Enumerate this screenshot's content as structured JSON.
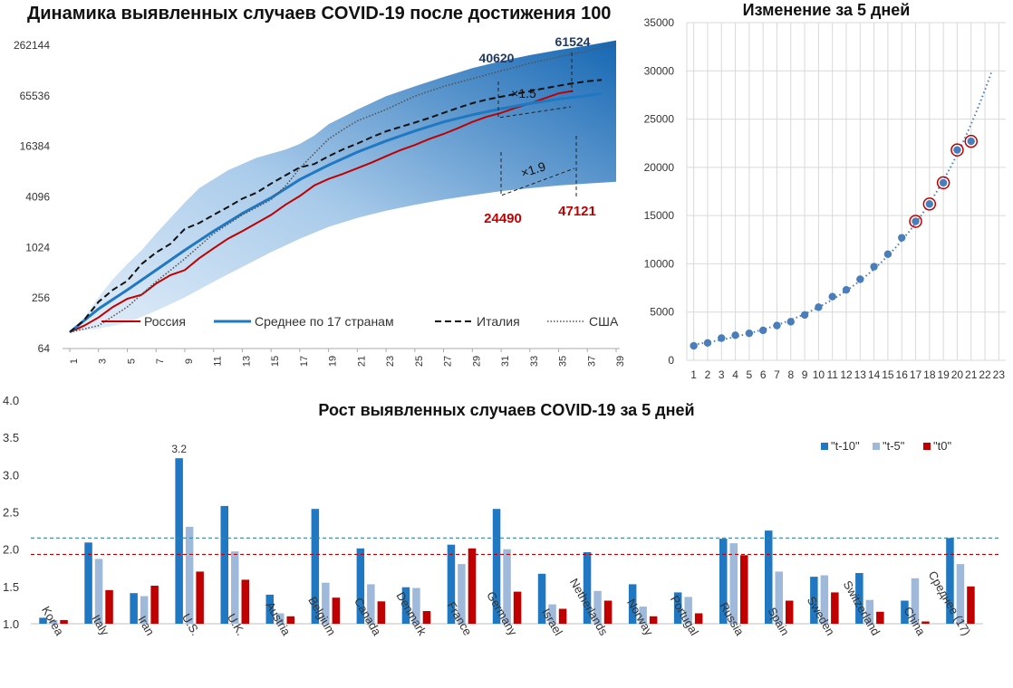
{
  "chart_data": [
    {
      "type": "line",
      "title": "Динамика выявленных случаев COVID-19 после достижения 100",
      "y_scale": "log2",
      "ylim": [
        64,
        400000
      ],
      "y_ticks": [
        "64",
        "256",
        "1024",
        "4096",
        "16384",
        "65536",
        "262144"
      ],
      "x_ticks": [
        "1",
        "3",
        "5",
        "7",
        "9",
        "11",
        "13",
        "15",
        "17",
        "19",
        "21",
        "23",
        "25",
        "27",
        "29",
        "31",
        "33",
        "35",
        "37",
        "39"
      ],
      "xlim": [
        1,
        39
      ],
      "band": {
        "upper": [
          [
            1,
            100
          ],
          [
            2,
            150
          ],
          [
            3,
            260
          ],
          [
            4,
            430
          ],
          [
            5,
            650
          ],
          [
            6,
            950
          ],
          [
            7,
            1500
          ],
          [
            8,
            2300
          ],
          [
            9,
            3500
          ],
          [
            10,
            5200
          ],
          [
            12,
            8500
          ],
          [
            14,
            12000
          ],
          [
            16,
            15000
          ],
          [
            17,
            17500
          ],
          [
            18,
            22000
          ],
          [
            19,
            30000
          ],
          [
            21,
            45000
          ],
          [
            23,
            65000
          ],
          [
            25,
            85000
          ],
          [
            27,
            110000
          ],
          [
            29,
            140000
          ],
          [
            31,
            170000
          ],
          [
            33,
            200000
          ],
          [
            35,
            230000
          ],
          [
            37,
            260000
          ],
          [
            39,
            300000
          ]
        ],
        "lower": [
          [
            1,
            100
          ],
          [
            3,
            110
          ],
          [
            5,
            130
          ],
          [
            7,
            180
          ],
          [
            9,
            260
          ],
          [
            11,
            400
          ],
          [
            13,
            600
          ],
          [
            15,
            900
          ],
          [
            17,
            1300
          ],
          [
            19,
            1800
          ],
          [
            21,
            2300
          ],
          [
            23,
            2800
          ],
          [
            25,
            3300
          ],
          [
            27,
            3800
          ],
          [
            29,
            4300
          ],
          [
            31,
            4800
          ],
          [
            33,
            5200
          ],
          [
            35,
            5600
          ],
          [
            37,
            5900
          ],
          [
            39,
            6200
          ]
        ]
      },
      "series": [
        {
          "name": "Россия",
          "color": "#c00000",
          "style": "solid",
          "points": [
            [
              1,
              100
            ],
            [
              2,
              120
            ],
            [
              3,
              150
            ],
            [
              4,
              200
            ],
            [
              5,
              250
            ],
            [
              6,
              280
            ],
            [
              7,
              380
            ],
            [
              8,
              480
            ],
            [
              9,
              550
            ],
            [
              10,
              760
            ],
            [
              11,
              1000
            ],
            [
              12,
              1300
            ],
            [
              13,
              1600
            ],
            [
              14,
              2000
            ],
            [
              15,
              2500
            ],
            [
              16,
              3300
            ],
            [
              17,
              4200
            ],
            [
              18,
              5600
            ],
            [
              19,
              6700
            ],
            [
              20,
              7700
            ],
            [
              21,
              9000
            ],
            [
              22,
              10500
            ],
            [
              23,
              12500
            ],
            [
              24,
              14800
            ],
            [
              25,
              17000
            ],
            [
              26,
              20000
            ],
            [
              27,
              23000
            ],
            [
              28,
              27000
            ],
            [
              29,
              32000
            ],
            [
              30,
              37000
            ],
            [
              31,
              41000
            ],
            [
              32,
              47000
            ],
            [
              33,
              53000
            ],
            [
              34,
              61000
            ],
            [
              35,
              70000
            ],
            [
              36,
              75000
            ]
          ]
        },
        {
          "name": "Среднее по 17 странам",
          "color": "#1f78c1",
          "style": "solid",
          "points": [
            [
              1,
              100
            ],
            [
              3,
              190
            ],
            [
              5,
              320
            ],
            [
              7,
              550
            ],
            [
              9,
              950
            ],
            [
              11,
              1600
            ],
            [
              13,
              2600
            ],
            [
              15,
              4000
            ],
            [
              17,
              6600
            ],
            [
              19,
              9800
            ],
            [
              21,
              14000
            ],
            [
              23,
              19000
            ],
            [
              25,
              25000
            ],
            [
              27,
              32000
            ],
            [
              29,
              39000
            ],
            [
              31,
              46000
            ],
            [
              33,
              53000
            ],
            [
              35,
              60000
            ],
            [
              37,
              66000
            ],
            [
              38,
              70000
            ]
          ]
        },
        {
          "name": "Италия",
          "color": "#111111",
          "style": "dashed",
          "points": [
            [
              1,
              100
            ],
            [
              2,
              140
            ],
            [
              3,
              230
            ],
            [
              4,
              320
            ],
            [
              5,
              410
            ],
            [
              6,
              650
            ],
            [
              7,
              890
            ],
            [
              8,
              1130
            ],
            [
              9,
              1700
            ],
            [
              10,
              2000
            ],
            [
              11,
              2500
            ],
            [
              12,
              3100
            ],
            [
              13,
              3900
            ],
            [
              14,
              4600
            ],
            [
              15,
              5900
            ],
            [
              16,
              7400
            ],
            [
              17,
              9200
            ],
            [
              18,
              10100
            ],
            [
              19,
              12500
            ],
            [
              20,
              15100
            ],
            [
              21,
              17700
            ],
            [
              22,
              21100
            ],
            [
              23,
              24700
            ],
            [
              24,
              27900
            ],
            [
              25,
              31500
            ],
            [
              26,
              35700
            ],
            [
              27,
              41000
            ],
            [
              28,
              47000
            ],
            [
              29,
              53500
            ],
            [
              30,
              59100
            ],
            [
              31,
              63900
            ],
            [
              32,
              69200
            ],
            [
              33,
              74400
            ],
            [
              34,
              80500
            ],
            [
              35,
              86500
            ],
            [
              36,
              92500
            ],
            [
              37,
              97700
            ],
            [
              38,
              101700
            ]
          ]
        },
        {
          "name": "США",
          "color": "#555555",
          "style": "dotted",
          "points": [
            [
              1,
              100
            ],
            [
              3,
              120
            ],
            [
              5,
              200
            ],
            [
              7,
              400
            ],
            [
              9,
              750
            ],
            [
              11,
              1500
            ],
            [
              13,
              2500
            ],
            [
              15,
              3800
            ],
            [
              16,
              5500
            ],
            [
              17,
              9000
            ],
            [
              18,
              13500
            ],
            [
              19,
              20000
            ],
            [
              20,
              26000
            ],
            [
              21,
              33000
            ],
            [
              23,
              45000
            ],
            [
              25,
              65000
            ],
            [
              27,
              85000
            ],
            [
              29,
              105000
            ],
            [
              31,
              130000
            ],
            [
              33,
              160000
            ],
            [
              35,
              190000
            ],
            [
              37,
              225000
            ],
            [
              39,
              265000
            ]
          ]
        }
      ],
      "annotations": [
        {
          "text": "40620",
          "color": "#1f3864"
        },
        {
          "text": "61524",
          "color": "#1f3864"
        },
        {
          "text": "24490",
          "color": "#c00000"
        },
        {
          "text": "47121",
          "color": "#c00000"
        },
        {
          "text": "×1.5",
          "color": "#111111"
        },
        {
          "text": "×1.9",
          "color": "#111111"
        }
      ],
      "legend_position": "bottom"
    },
    {
      "type": "scatter",
      "title": "Изменение за 5 дней",
      "x_ticks": [
        "1",
        "2",
        "3",
        "4",
        "5",
        "6",
        "7",
        "8",
        "9",
        "10",
        "11",
        "12",
        "13",
        "14",
        "15",
        "16",
        "17",
        "18",
        "19",
        "20",
        "21",
        "22",
        "23"
      ],
      "xlim": [
        0.5,
        23.5
      ],
      "ylim": [
        0,
        35000
      ],
      "y_ticks": [
        "0",
        "5000",
        "10000",
        "15000",
        "20000",
        "25000",
        "30000",
        "35000"
      ],
      "grid": true,
      "points": [
        [
          1,
          1500
        ],
        [
          2,
          1800
        ],
        [
          3,
          2300
        ],
        [
          4,
          2600
        ],
        [
          5,
          2800
        ],
        [
          6,
          3100
        ],
        [
          7,
          3600
        ],
        [
          8,
          4000
        ],
        [
          9,
          4700
        ],
        [
          10,
          5500
        ],
        [
          11,
          6600
        ],
        [
          12,
          7300
        ],
        [
          13,
          8400
        ],
        [
          14,
          9700
        ],
        [
          15,
          11000
        ],
        [
          16,
          12700
        ],
        [
          17,
          14400
        ],
        [
          18,
          16200
        ],
        [
          19,
          18400
        ],
        [
          20,
          21800
        ],
        [
          21,
          22700
        ]
      ],
      "highlighted_points": [
        17,
        18,
        19,
        20,
        21
      ],
      "trendline": "exponential",
      "trendline_extent": [
        1,
        22.5
      ],
      "point_color": "#4a7ebb",
      "highlight_color": "#c00000"
    },
    {
      "type": "bar",
      "title": "Рост выявленных случаев COVID-19 за 5 дней",
      "categories": [
        "Korea",
        "Italy",
        "Iran",
        "U.S.",
        "U.K.",
        "Austria",
        "Belgium",
        "Canada",
        "Denmark",
        "France",
        "Germany",
        "Israel",
        "Netherlands",
        "Norway",
        "Portugal",
        "Russia",
        "Spain",
        "Sweden",
        "Switzerland",
        "China",
        "Среднее (17)"
      ],
      "ylim": [
        1.0,
        4.0
      ],
      "y_ticks": [
        "1.0",
        "1.5",
        "2.0",
        "2.5",
        "3.0",
        "3.5",
        "4.0"
      ],
      "series": [
        {
          "name": "\"t-10\"",
          "color": "#1f78c1",
          "values": [
            1.08,
            2.09,
            1.41,
            3.22,
            2.58,
            1.39,
            2.54,
            2.01,
            1.49,
            2.06,
            2.54,
            1.67,
            1.96,
            1.53,
            1.42,
            2.14,
            2.25,
            1.63,
            1.68,
            1.31,
            2.15
          ]
        },
        {
          "name": "\"t-5\"",
          "color": "#9fb9db",
          "values": [
            1.05,
            1.87,
            1.37,
            2.3,
            1.97,
            1.14,
            1.55,
            1.53,
            1.48,
            1.8,
            2.0,
            1.26,
            1.44,
            1.23,
            1.36,
            2.08,
            1.7,
            1.65,
            1.32,
            1.61,
            1.8
          ]
        },
        {
          "name": "\"t0\"",
          "color": "#c00000",
          "values": [
            1.05,
            1.45,
            1.51,
            1.7,
            1.59,
            1.1,
            1.35,
            1.3,
            1.17,
            2.01,
            1.43,
            1.2,
            1.31,
            1.1,
            1.14,
            1.92,
            1.31,
            1.42,
            1.16,
            1.03,
            1.5
          ]
        }
      ],
      "data_labels": [
        {
          "series": 0,
          "category": 3,
          "text": "3.2"
        }
      ],
      "reference_lines": [
        {
          "value": 2.15,
          "color": "#2e86ab",
          "style": "dashed"
        },
        {
          "value": 1.93,
          "color": "#c00000",
          "style": "dashed"
        }
      ],
      "legend_position": "top-right"
    }
  ]
}
